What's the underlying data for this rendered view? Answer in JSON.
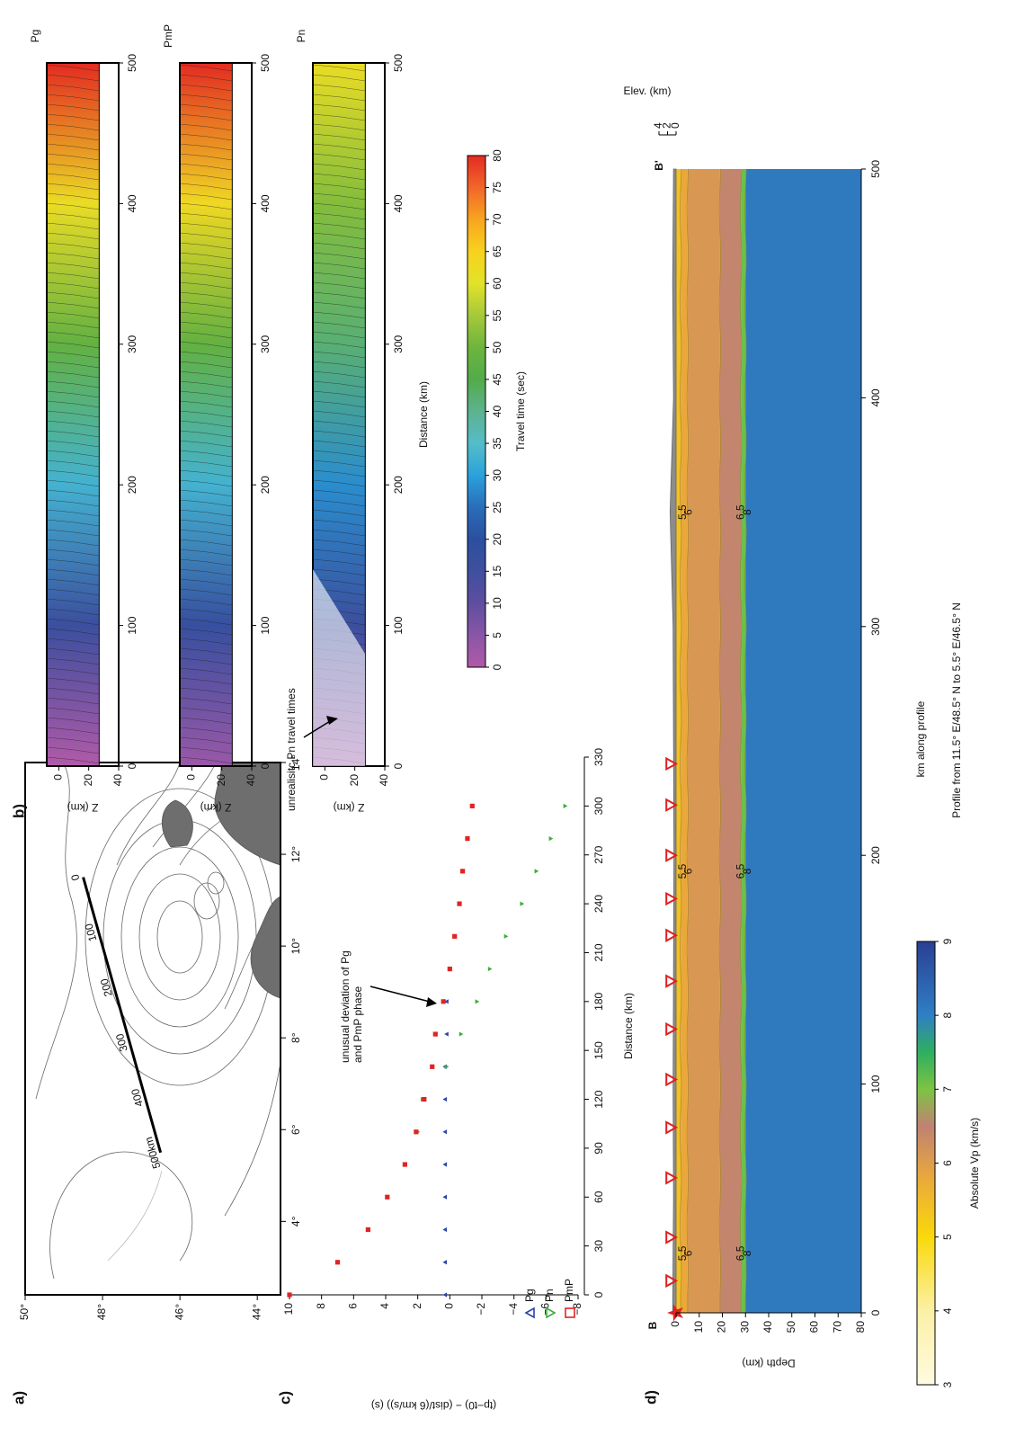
{
  "figure_labels": [
    "a)",
    "b)",
    "c)",
    "d)"
  ],
  "chart_data": [
    {
      "type": "map",
      "xlim": [
        2.4,
        14
      ],
      "ylim": [
        43.4,
        50
      ],
      "xticks": [
        {
          "value": 4,
          "label": "4°"
        },
        {
          "value": 6,
          "label": "6°"
        },
        {
          "value": 8,
          "label": "8°"
        },
        {
          "value": 10,
          "label": "10°"
        },
        {
          "value": 12,
          "label": "12°"
        },
        {
          "value": 14,
          "label": "14°"
        }
      ],
      "yticks": [
        {
          "value": 44,
          "label": "44°"
        },
        {
          "value": 46,
          "label": "46°"
        },
        {
          "value": 48,
          "label": "48°"
        },
        {
          "value": 50,
          "label": "50°"
        }
      ],
      "profile": {
        "x": [
          11.5,
          5.5
        ],
        "y": [
          48.5,
          46.5
        ],
        "tick_labels": [
          "0",
          "100",
          "200",
          "300",
          "400",
          "500km"
        ]
      }
    },
    {
      "type": "heatmap",
      "xlabel": "Distance (km)",
      "ylabel": "Z (km)",
      "xlim": [
        0,
        500
      ],
      "xticks": [
        0,
        100,
        200,
        300,
        400,
        500
      ],
      "ylim": [
        -8,
        40
      ],
      "yticks": [
        0,
        20,
        40
      ],
      "moho_depth": 27,
      "panels": [
        {
          "title": "Pg",
          "x": [
            0,
            100,
            200,
            300,
            400,
            500
          ],
          "values": [
            0,
            16,
            33,
            48,
            62,
            80
          ]
        },
        {
          "title": "PmP",
          "x": [
            0,
            100,
            200,
            300,
            400,
            500
          ],
          "values": [
            3,
            17,
            33,
            48,
            63,
            80
          ]
        },
        {
          "title": "Pn",
          "x": [
            0,
            100,
            200,
            300,
            400,
            500
          ],
          "values": [
            3,
            16,
            28,
            42,
            52,
            62
          ]
        }
      ],
      "annotation": "unrealisitc Pn travel times",
      "colorbar": {
        "label": "Travel time (sec)",
        "ticks": [
          0,
          5,
          10,
          15,
          20,
          25,
          30,
          35,
          40,
          45,
          50,
          55,
          60,
          65,
          70,
          75,
          80
        ],
        "colors": [
          "#b05aa8",
          "#8a56a6",
          "#5f4e9f",
          "#3f4f9e",
          "#2b4fa0",
          "#2a6db8",
          "#2aa2dc",
          "#55bdc8",
          "#5db28f",
          "#53ab4a",
          "#6db53d",
          "#a6c93a",
          "#e2e22a",
          "#f7d21e",
          "#f8a51f",
          "#f2662a",
          "#e32b22"
        ]
      }
    },
    {
      "type": "scatter",
      "xlabel": "Distance (km)",
      "ylabel": "(tp−t0) − (dist/(6 km/s)) (s)",
      "xlim": [
        0,
        330
      ],
      "xticks": [
        0,
        30,
        60,
        90,
        120,
        150,
        180,
        210,
        240,
        270,
        300,
        330
      ],
      "ylim": [
        -8,
        10
      ],
      "yticks": [
        10,
        8,
        6,
        4,
        2,
        0,
        {
          "value": -2,
          "label": "−2"
        },
        {
          "value": -4,
          "label": "−4"
        },
        {
          "value": -6,
          "label": "−6"
        },
        {
          "value": -8,
          "label": "−8"
        }
      ],
      "series": [
        {
          "name": "Pg",
          "color": "#2a46a8",
          "marker": "triangle-up",
          "x": [
            0,
            20,
            40,
            60,
            80,
            100,
            120,
            140,
            160,
            180,
            200
          ],
          "values": [
            0.3,
            0.3,
            0.3,
            0.3,
            0.3,
            0.3,
            0.3,
            0.3,
            0.2,
            0.2,
            0
          ]
        },
        {
          "name": "Pn",
          "color": "#3cae3c",
          "marker": "triangle-down",
          "x": [
            100,
            120,
            140,
            160,
            180,
            200,
            220,
            240,
            260,
            280,
            300
          ],
          "values": [
            2.0,
            1.7,
            0.2,
            -0.7,
            -1.7,
            -2.5,
            -3.5,
            -4.5,
            -5.4,
            -6.3,
            -7.2
          ]
        },
        {
          "name": "PmP",
          "color": "#e02424",
          "marker": "square",
          "x": [
            0,
            20,
            40,
            60,
            80,
            100,
            120,
            140,
            160,
            180,
            200,
            220,
            240,
            260,
            280,
            300
          ],
          "values": [
            10,
            7,
            5.1,
            3.9,
            2.8,
            2.1,
            1.6,
            1.1,
            0.9,
            0.4,
            0,
            -0.3,
            -0.6,
            -0.8,
            -1.1,
            -1.4
          ]
        }
      ],
      "annotation": [
        "unusual deviation of Pg",
        "and PmP phase"
      ]
    },
    {
      "type": "profile",
      "title": "Profile from 11.5° E/48.5° N to 5.5° E/46.5° N",
      "xlabel": "km along profile",
      "ylabel": "Depth (km)",
      "xlim": [
        0,
        500
      ],
      "xticks": [
        0,
        100,
        200,
        300,
        400,
        500
      ],
      "ylim": [
        0,
        80
      ],
      "yticks": [
        0,
        10,
        20,
        30,
        40,
        50,
        60,
        70,
        80
      ],
      "y2label": "Elev. (km)",
      "y2lim": [
        0,
        4
      ],
      "y2ticks": [
        0,
        2,
        4
      ],
      "start_label": "B",
      "end_label": "B'",
      "source": 0,
      "stations": [
        14,
        33,
        59,
        81,
        102,
        124,
        145,
        165,
        181,
        200,
        222,
        240
      ],
      "elevation": {
        "x": [
          0,
          50,
          100,
          150,
          200,
          250,
          300,
          350,
          400,
          450,
          500
        ],
        "values": [
          0.8,
          0.6,
          0.7,
          0.6,
          0.5,
          0.6,
          0.7,
          1.4,
          0.6,
          0.8,
          0.6
        ]
      },
      "layers": [
        {
          "top": 0,
          "bottom": 2,
          "vp": 5.4
        },
        {
          "top": 2,
          "bottom": 5,
          "vp": 5.8
        },
        {
          "top": 5,
          "bottom": 19,
          "vp": 6.1
        },
        {
          "top": 19,
          "bottom": 28,
          "vp": 6.45
        },
        {
          "top": 28,
          "bottom": 30,
          "vp": 7.1
        },
        {
          "top": 30,
          "bottom": 80,
          "vp": 8.1
        }
      ],
      "contour_labels": [
        {
          "label": "5.5",
          "x": 26,
          "depth": 3
        },
        {
          "label": "6",
          "x": 26,
          "depth": 5.5
        },
        {
          "label": "6.5",
          "x": 26,
          "depth": 28
        },
        {
          "label": "8",
          "x": 26,
          "depth": 31
        },
        {
          "label": "5.5",
          "x": 193,
          "depth": 3
        },
        {
          "label": "6",
          "x": 193,
          "depth": 5.5
        },
        {
          "label": "6.5",
          "x": 193,
          "depth": 28
        },
        {
          "label": "8",
          "x": 193,
          "depth": 31
        },
        {
          "label": "5.5",
          "x": 350,
          "depth": 3
        },
        {
          "label": "6",
          "x": 350,
          "depth": 5.5
        },
        {
          "label": "6.5",
          "x": 350,
          "depth": 28
        },
        {
          "label": "8",
          "x": 350,
          "depth": 31
        }
      ],
      "colorbar": {
        "label": "Absolute Vp (km/s)",
        "ticks": [
          3,
          4,
          5,
          6,
          7,
          8,
          9
        ],
        "colormap": [
          [
            3,
            "#fffbe0"
          ],
          [
            4,
            "#fcf0a6"
          ],
          [
            5,
            "#f9d90a"
          ],
          [
            5.8,
            "#eaa83c"
          ],
          [
            6.5,
            "#c08272"
          ],
          [
            7,
            "#7cc443"
          ],
          [
            7.5,
            "#2fae60"
          ],
          [
            8,
            "#2f7fc4"
          ],
          [
            9,
            "#2a3f92"
          ]
        ]
      }
    }
  ]
}
